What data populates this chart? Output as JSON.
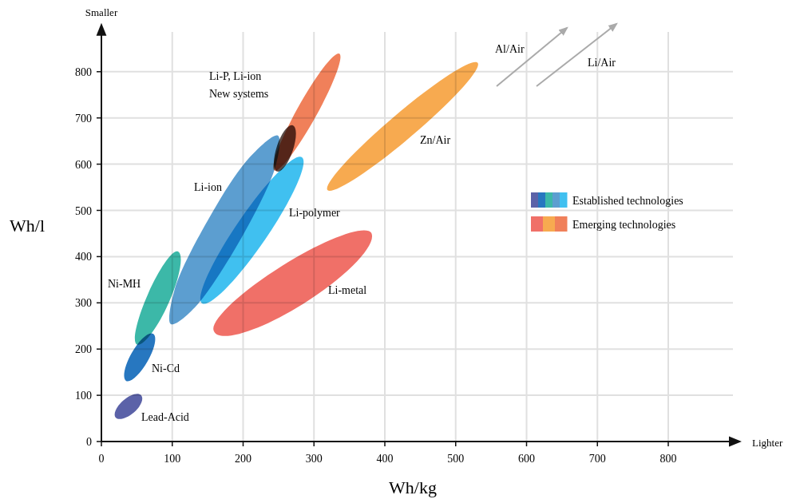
{
  "chart_data": {
    "type": "area",
    "xlabel": "Wh/kg",
    "ylabel": "Wh/l",
    "xlim": [
      0,
      900
    ],
    "ylim": [
      0,
      900
    ],
    "xticks": [
      0,
      100,
      200,
      300,
      400,
      500,
      600,
      700,
      800
    ],
    "yticks": [
      0,
      100,
      200,
      300,
      400,
      500,
      600,
      700,
      800
    ],
    "grid": true,
    "series": [
      {
        "name": "Lead-Acid",
        "color": "#5b62a8",
        "x": [
          56,
          46,
          20,
          31
        ],
        "values": [
          100,
          63,
          52,
          89
        ]
      },
      {
        "name": "Ni-Cd",
        "color": "#2777c0",
        "x": [
          73,
          65,
          35,
          43
        ],
        "values": [
          233,
          173,
          131,
          192
        ]
      },
      {
        "name": "Ni-MH",
        "color": "#3cb8a8",
        "x": [
          108,
          95,
          50,
          66
        ],
        "values": [
          411,
          300,
          210,
          320
        ]
      },
      {
        "name": "Li-ion",
        "color": "#5c9ed0",
        "x": [
          249,
          244,
          197,
          137,
          98,
          103,
          150,
          210
        ],
        "values": [
          662,
          587,
          null,
          299,
          254,
          327,
          478,
          616
        ]
      },
      {
        "name": "Li-polymer",
        "color": "#40c0f0",
        "x": [
          283,
          231,
          142,
          194
        ],
        "values": [
          615,
          437,
          299,
          476
        ]
      },
      {
        "name": "Li-P, Li-ion\nNew systems",
        "color": "#f0805a",
        "x": [
          332,
          268,
          248,
          312
        ],
        "values": [
          838,
          695,
          587,
          730
        ]
      },
      {
        "color": "#5a4a46",
        "x": [
          270,
          270,
          248,
          248
        ],
        "values": [
          684,
          629,
          584,
          640
        ]
      },
      {
        "name": "Li-metal",
        "color": "#f07068",
        "x": [
          381,
          285,
          159,
          255
        ],
        "values": [
          451,
          298,
          238,
          380
        ]
      },
      {
        "name": "Zn/Air",
        "color": "#f7aa50",
        "x": [
          531,
          437,
          319,
          414
        ],
        "values": [
          819,
          660,
          544,
          704
        ]
      }
    ],
    "annotations": [
      "Al/Air",
      "Li/Air",
      "Smaller",
      "Lighter",
      "Established technologies",
      "Emerging technologies"
    ]
  }
}
